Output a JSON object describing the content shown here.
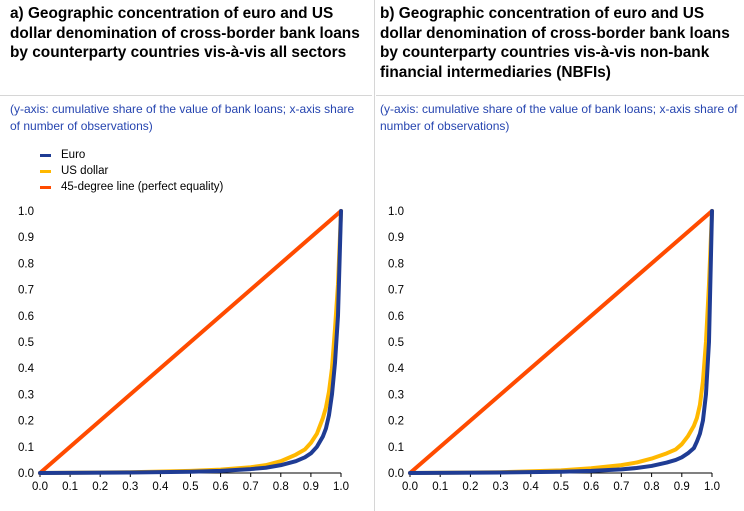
{
  "colors": {
    "euro": "#1f3c94",
    "usd": "#ffb800",
    "equality": "#ff4b00",
    "subtitle": "#2645b0"
  },
  "legend": {
    "euro": "Euro",
    "usd": "US dollar",
    "equality": "45-degree line (perfect equality)"
  },
  "chart_data": [
    {
      "type": "line",
      "title": "a) Geographic concentration of euro and US dollar denomination of cross-border bank loans by counterparty countries vis-à-vis all sectors",
      "subtitle": "(y-axis: cumulative share of the value of bank loans; x-axis share of number of observations)",
      "xlim": [
        0,
        1
      ],
      "ylim": [
        0,
        1
      ],
      "xticks": [
        "0.0",
        "0.1",
        "0.2",
        "0.3",
        "0.4",
        "0.5",
        "0.6",
        "0.7",
        "0.8",
        "0.9",
        "1.0"
      ],
      "yticks": [
        "0.0",
        "0.1",
        "0.2",
        "0.3",
        "0.4",
        "0.5",
        "0.6",
        "0.7",
        "0.8",
        "0.9",
        "1.0"
      ],
      "grid": false,
      "legend_position": "top-left",
      "series": [
        {
          "name": "Euro",
          "color": "#1f3c94",
          "x": [
            0,
            0.3,
            0.5,
            0.6,
            0.7,
            0.75,
            0.8,
            0.85,
            0.88,
            0.9,
            0.92,
            0.94,
            0.95,
            0.96,
            0.97,
            0.98,
            0.99,
            1.0
          ],
          "y": [
            0,
            0.002,
            0.005,
            0.008,
            0.015,
            0.02,
            0.03,
            0.045,
            0.06,
            0.075,
            0.1,
            0.14,
            0.17,
            0.22,
            0.3,
            0.42,
            0.6,
            1.0
          ]
        },
        {
          "name": "US dollar",
          "color": "#ffb800",
          "x": [
            0,
            0.3,
            0.5,
            0.6,
            0.7,
            0.75,
            0.8,
            0.85,
            0.88,
            0.9,
            0.92,
            0.94,
            0.95,
            0.96,
            0.97,
            0.98,
            0.99,
            1.0
          ],
          "y": [
            0,
            0.003,
            0.008,
            0.013,
            0.022,
            0.03,
            0.045,
            0.07,
            0.09,
            0.115,
            0.15,
            0.21,
            0.25,
            0.31,
            0.4,
            0.55,
            0.72,
            1.0
          ]
        },
        {
          "name": "45-degree line (perfect equality)",
          "color": "#ff4b00",
          "x": [
            0,
            1.0
          ],
          "y": [
            0,
            1.0
          ]
        }
      ]
    },
    {
      "type": "line",
      "title": "b) Geographic concentration of euro and US dollar denomination of cross-border bank loans by counterparty countries vis-à-vis non-bank financial intermediaries (NBFIs)",
      "subtitle": "(y-axis: cumulative share of the value of bank loans; x-axis share of number of observations)",
      "xlim": [
        0,
        1
      ],
      "ylim": [
        0,
        1
      ],
      "xticks": [
        "0.0",
        "0.1",
        "0.2",
        "0.3",
        "0.4",
        "0.5",
        "0.6",
        "0.7",
        "0.8",
        "0.9",
        "1.0"
      ],
      "yticks": [
        "0.0",
        "0.1",
        "0.2",
        "0.3",
        "0.4",
        "0.5",
        "0.6",
        "0.7",
        "0.8",
        "0.9",
        "1.0"
      ],
      "grid": false,
      "series": [
        {
          "name": "Euro",
          "color": "#1f3c94",
          "x": [
            0,
            0.3,
            0.5,
            0.6,
            0.7,
            0.75,
            0.8,
            0.85,
            0.88,
            0.9,
            0.92,
            0.94,
            0.95,
            0.96,
            0.97,
            0.98,
            0.99,
            1.0
          ],
          "y": [
            0,
            0.002,
            0.005,
            0.008,
            0.014,
            0.019,
            0.027,
            0.04,
            0.05,
            0.06,
            0.075,
            0.095,
            0.12,
            0.15,
            0.2,
            0.3,
            0.5,
            1.0
          ]
        },
        {
          "name": "US dollar",
          "color": "#ffb800",
          "x": [
            0,
            0.3,
            0.5,
            0.6,
            0.7,
            0.75,
            0.8,
            0.85,
            0.88,
            0.9,
            0.92,
            0.94,
            0.95,
            0.96,
            0.97,
            0.98,
            0.99,
            1.0
          ],
          "y": [
            0,
            0.003,
            0.01,
            0.018,
            0.03,
            0.04,
            0.055,
            0.075,
            0.09,
            0.11,
            0.14,
            0.18,
            0.21,
            0.26,
            0.35,
            0.5,
            0.72,
            1.0
          ]
        },
        {
          "name": "45-degree line (perfect equality)",
          "color": "#ff4b00",
          "x": [
            0,
            1.0
          ],
          "y": [
            0,
            1.0
          ]
        }
      ]
    }
  ]
}
